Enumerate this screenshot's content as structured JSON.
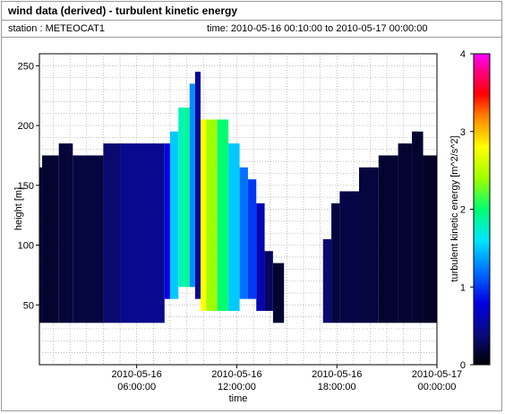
{
  "header": {
    "title": "wind data (derived) - turbulent kinetic energy",
    "station": "station : METEOCAT1",
    "time_range": "time: 2010-05-16 00:10:00 to 2010-05-17 00:00:00"
  },
  "chart_data": {
    "type": "heatmap",
    "title": "wind data (derived) - turbulent kinetic energy",
    "xlabel": "time",
    "ylabel": "height [m]",
    "colorbar_label": "turbulent kinetic energy [m^2/s^2]",
    "x_ticks": [
      {
        "hour": 6,
        "line1": "2010-05-16",
        "line2": "06:00:00"
      },
      {
        "hour": 12,
        "line1": "2010-05-16",
        "line2": "12:00:00"
      },
      {
        "hour": 18,
        "line1": "2010-05-16",
        "line2": "18:00:00"
      },
      {
        "hour": 24,
        "line1": "2010-05-17",
        "line2": "00:00:00"
      }
    ],
    "y_ticks": [
      "50",
      "100",
      "150",
      "200",
      "250"
    ],
    "y_tick_values": [
      50,
      100,
      150,
      200,
      250
    ],
    "xlim_hours": [
      0.1667,
      24
    ],
    "ylim": [
      0,
      260
    ],
    "colorbar_ticks": [
      "0",
      "1",
      "2",
      "3",
      "4"
    ],
    "colorbar_tick_values": [
      0,
      1,
      2,
      3,
      4
    ],
    "color_range": [
      0,
      4
    ],
    "grid": true,
    "colorbar_position": "right",
    "column_hours": 0.1667,
    "columns": [
      {
        "start_hour": 0.17,
        "end_hour": 0.33,
        "bottom": 35,
        "top": 165,
        "tke": 0.15
      },
      {
        "start_hour": 0.33,
        "end_hour": 1.33,
        "bottom": 35,
        "top": 175,
        "tke": 0.15
      },
      {
        "start_hour": 1.33,
        "end_hour": 2.17,
        "bottom": 35,
        "top": 185,
        "tke": 0.18
      },
      {
        "start_hour": 2.17,
        "end_hour": 4.0,
        "bottom": 35,
        "top": 175,
        "tke": 0.2
      },
      {
        "start_hour": 4.0,
        "end_hour": 5.0,
        "bottom": 35,
        "top": 185,
        "tke": 0.35
      },
      {
        "start_hour": 5.0,
        "end_hour": 7.67,
        "bottom": 35,
        "top": 185,
        "tke": 0.45
      },
      {
        "start_hour": 7.67,
        "end_hour": 8.0,
        "bottom": 55,
        "top": 185,
        "tke": 0.8
      },
      {
        "start_hour": 8.0,
        "end_hour": 8.5,
        "bottom": 55,
        "top": 195,
        "tke": 1.5
      },
      {
        "start_hour": 8.5,
        "end_hour": 8.83,
        "bottom": 65,
        "top": 215,
        "tke": 1.8
      },
      {
        "start_hour": 8.83,
        "end_hour": 9.17,
        "bottom": 65,
        "top": 215,
        "tke": 1.9
      },
      {
        "start_hour": 9.17,
        "end_hour": 9.5,
        "bottom": 65,
        "top": 235,
        "tke": 1.3
      },
      {
        "start_hour": 9.5,
        "end_hour": 9.83,
        "bottom": 55,
        "top": 245,
        "tke": 0.5
      },
      {
        "start_hour": 9.83,
        "end_hour": 10.17,
        "bottom": 45,
        "top": 205,
        "tke": 2.8
      },
      {
        "start_hour": 10.17,
        "end_hour": 10.83,
        "bottom": 45,
        "top": 205,
        "tke": 2.4
      },
      {
        "start_hour": 10.83,
        "end_hour": 11.5,
        "bottom": 45,
        "top": 205,
        "tke": 2.0
      },
      {
        "start_hour": 11.5,
        "end_hour": 12.17,
        "bottom": 45,
        "top": 185,
        "tke": 1.5
      },
      {
        "start_hour": 12.17,
        "end_hour": 12.67,
        "bottom": 55,
        "top": 165,
        "tke": 1.2
      },
      {
        "start_hour": 12.67,
        "end_hour": 13.17,
        "bottom": 55,
        "top": 155,
        "tke": 1.0
      },
      {
        "start_hour": 13.17,
        "end_hour": 13.67,
        "bottom": 45,
        "top": 135,
        "tke": 0.6
      },
      {
        "start_hour": 13.67,
        "end_hour": 14.17,
        "bottom": 45,
        "top": 95,
        "tke": 0.3
      },
      {
        "start_hour": 14.17,
        "end_hour": 14.83,
        "bottom": 35,
        "top": 85,
        "tke": 0.15
      },
      {
        "start_hour": 17.17,
        "end_hour": 17.67,
        "bottom": 35,
        "top": 105,
        "tke": 0.35
      },
      {
        "start_hour": 17.67,
        "end_hour": 18.17,
        "bottom": 35,
        "top": 135,
        "tke": 0.2
      },
      {
        "start_hour": 18.17,
        "end_hour": 19.33,
        "bottom": 35,
        "top": 145,
        "tke": 0.22
      },
      {
        "start_hour": 19.33,
        "end_hour": 20.5,
        "bottom": 35,
        "top": 165,
        "tke": 0.2
      },
      {
        "start_hour": 20.5,
        "end_hour": 21.67,
        "bottom": 35,
        "top": 175,
        "tke": 0.15
      },
      {
        "start_hour": 21.67,
        "end_hour": 22.5,
        "bottom": 35,
        "top": 185,
        "tke": 0.15
      },
      {
        "start_hour": 22.5,
        "end_hour": 23.17,
        "bottom": 35,
        "top": 195,
        "tke": 0.15
      },
      {
        "start_hour": 23.17,
        "end_hour": 24.0,
        "bottom": 35,
        "top": 175,
        "tke": 0.12
      }
    ]
  }
}
